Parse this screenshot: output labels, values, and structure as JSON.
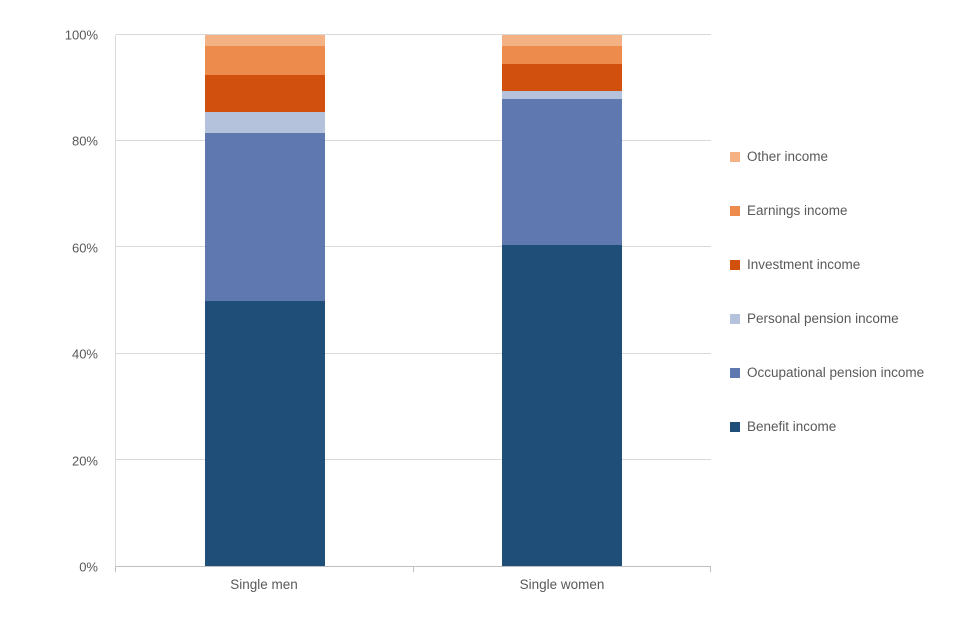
{
  "chart_data": {
    "type": "bar",
    "subtype": "100% stacked column",
    "title": "",
    "xlabel": "",
    "ylabel": "",
    "categories": [
      "Single men",
      "Single women"
    ],
    "series": [
      {
        "name": "Benefit income",
        "color": "#1f4e79",
        "values": [
          50.0,
          60.5
        ]
      },
      {
        "name": "Occupational pension income",
        "color": "#6078b0",
        "values": [
          31.5,
          27.5
        ]
      },
      {
        "name": "Personal pension income",
        "color": "#b4c2dc",
        "values": [
          4.0,
          1.5
        ]
      },
      {
        "name": "Investment income",
        "color": "#d2500e",
        "values": [
          7.0,
          5.0
        ]
      },
      {
        "name": "Earnings income",
        "color": "#ed8b4d",
        "values": [
          5.5,
          3.5
        ]
      },
      {
        "name": "Other income",
        "color": "#f4b183",
        "values": [
          2.0,
          2.0
        ]
      }
    ],
    "y_ticks": [
      "0%",
      "20%",
      "40%",
      "60%",
      "80%",
      "100%"
    ],
    "ylim": [
      0,
      100
    ],
    "grid": "horizontal",
    "legend_position": "right",
    "legend_order_top_to_bottom": [
      "Other income",
      "Earnings income",
      "Investment income",
      "Personal pension income",
      "Occupational pension income",
      "Benefit income"
    ]
  }
}
